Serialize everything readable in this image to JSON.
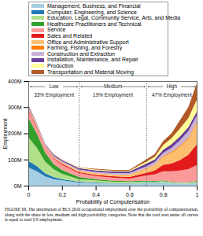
{
  "chart_data": {
    "type": "area",
    "stacked": true,
    "xlabel": "Probability of Computerisation",
    "ylabel": "Employment",
    "caption": "FIGURE III. The distribution of BLS 2010 occupational employment over the probability of computerisation, along with the share in low, medium and high probability categories. Note that the total area under all curves is equal to total US employment.",
    "x": [
      0,
      0.05,
      0.1,
      0.15,
      0.2,
      0.3,
      0.4,
      0.5,
      0.6,
      0.7,
      0.75,
      0.8,
      0.85,
      0.9,
      0.95,
      1
    ],
    "xlim": [
      0,
      1
    ],
    "xticks": [
      0,
      0.2,
      0.4,
      0.6,
      0.8,
      1
    ],
    "ylim": [
      0,
      400
    ],
    "yticks": [
      {
        "value": 0,
        "label": "0M"
      },
      {
        "value": 100,
        "label": "100M"
      },
      {
        "value": 200,
        "label": "200M"
      },
      {
        "value": 300,
        "label": "300M"
      },
      {
        "value": 400,
        "label": "400M"
      }
    ],
    "thresholds": [
      0.3,
      0.7
    ],
    "regions": [
      {
        "label": "Low",
        "share": "33% Employment"
      },
      {
        "label": "Medium",
        "share": "19% Employment"
      },
      {
        "label": "High",
        "share": "47% Employment"
      }
    ],
    "series": [
      {
        "name": "Management, Business, and Financial",
        "color": "#a6cee3",
        "values": [
          70,
          55,
          35,
          25,
          20,
          12,
          10,
          8,
          8,
          10,
          10,
          12,
          10,
          8,
          8,
          10
        ]
      },
      {
        "name": "Computer, Engineering, and Science",
        "color": "#1f78b4",
        "values": [
          25,
          20,
          12,
          8,
          5,
          3,
          2,
          2,
          1,
          1,
          1,
          1,
          0,
          0,
          0,
          0
        ]
      },
      {
        "name": "Education, Legal, Community Service, Arts, and Media",
        "color": "#b2df8a",
        "values": [
          90,
          70,
          45,
          30,
          20,
          10,
          8,
          5,
          5,
          5,
          4,
          4,
          3,
          3,
          3,
          5
        ]
      },
      {
        "name": "Healthcare Practitioners and Technical",
        "color": "#33a02c",
        "values": [
          75,
          55,
          35,
          20,
          15,
          8,
          5,
          4,
          3,
          3,
          3,
          3,
          2,
          2,
          2,
          3
        ]
      },
      {
        "name": "Service",
        "color": "#fb9a99",
        "values": [
          25,
          20,
          20,
          20,
          20,
          15,
          12,
          12,
          10,
          20,
          25,
          35,
          40,
          45,
          50,
          60
        ]
      },
      {
        "name": "Sales and Related",
        "color": "#e31a1c",
        "values": [
          5,
          5,
          3,
          3,
          4,
          4,
          4,
          5,
          6,
          10,
          15,
          25,
          30,
          40,
          55,
          80
        ]
      },
      {
        "name": "Office and Administrative Support",
        "color": "#fdbf6f",
        "values": [
          5,
          5,
          4,
          4,
          5,
          5,
          6,
          6,
          8,
          15,
          20,
          30,
          40,
          50,
          60,
          80
        ]
      },
      {
        "name": "Farming, Fishing, and Forestry",
        "color": "#ff7f00",
        "values": [
          0,
          0,
          0,
          0,
          0,
          1,
          1,
          1,
          1,
          2,
          2,
          3,
          4,
          5,
          5,
          5
        ]
      },
      {
        "name": "Construction and Extraction",
        "color": "#cab2d6",
        "values": [
          5,
          4,
          3,
          3,
          4,
          4,
          5,
          5,
          6,
          8,
          10,
          12,
          15,
          20,
          25,
          25
        ]
      },
      {
        "name": "Installation, Maintenance, and Repair",
        "color": "#6a3d9a",
        "values": [
          5,
          3,
          3,
          4,
          5,
          5,
          6,
          6,
          6,
          10,
          10,
          12,
          15,
          15,
          15,
          15
        ]
      },
      {
        "name": "Production",
        "color": "#ffff99",
        "values": [
          2,
          1,
          0,
          1,
          1,
          2,
          3,
          3,
          3,
          8,
          10,
          18,
          22,
          30,
          35,
          45
        ]
      },
      {
        "name": "Transportation and Material Moving",
        "color": "#b15928",
        "values": [
          3,
          2,
          0,
          2,
          1,
          1,
          3,
          3,
          3,
          8,
          10,
          15,
          19,
          32,
          42,
          62
        ]
      }
    ]
  }
}
